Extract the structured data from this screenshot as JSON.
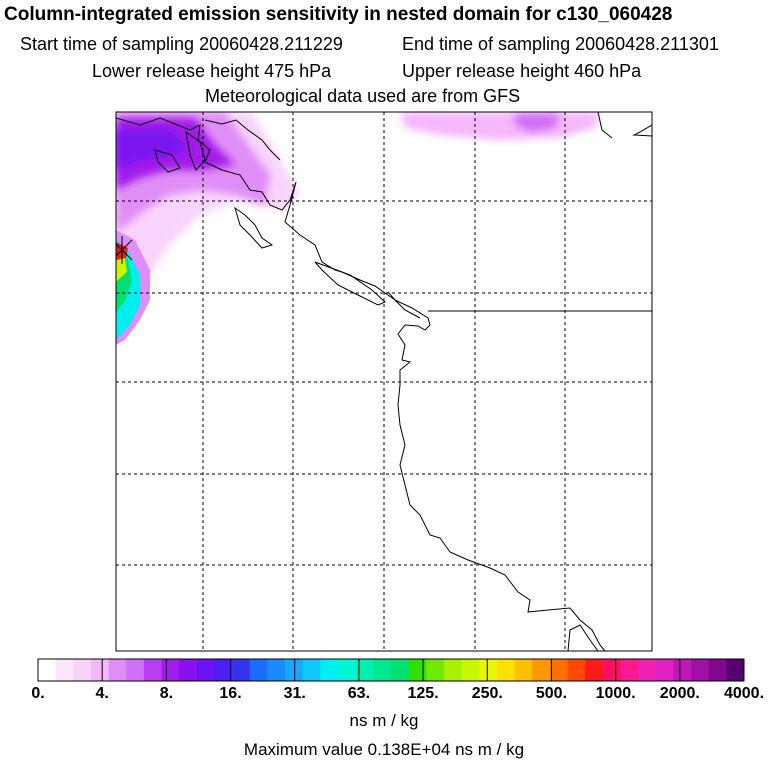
{
  "header": {
    "title": "Column-integrated emission sensitivity in nested domain for c130_060428",
    "start_time": "Start time of sampling 20060428.211229",
    "end_time": "End time of sampling 20060428.211301",
    "lower_release": "Lower release height  475 hPa",
    "upper_release": "Upper release height  460 hPa",
    "met_data": "Meteorological data used are from GFS"
  },
  "colorbar": {
    "ticks": [
      "0.",
      "4.",
      "8.",
      "16.",
      "31.",
      "63.",
      "125.",
      "250.",
      "500.",
      "1000.",
      "2000.",
      "4000."
    ],
    "colors": [
      "#ffffff",
      "#fce6fd",
      "#f9d2fc",
      "#f4b8fb",
      "#e08ef7",
      "#d070f6",
      "#b93ef0",
      "#a21be9",
      "#8a10f0",
      "#6c12f5",
      "#4a20f5",
      "#3434f0",
      "#1a6dff",
      "#1a8aff",
      "#18a8ff",
      "#10c8ff",
      "#00f0f0",
      "#00f5d5",
      "#00f0b0",
      "#00e890",
      "#00e070",
      "#30e000",
      "#70e800",
      "#a8f000",
      "#c8f500",
      "#e8f800",
      "#ffe000",
      "#ffc000",
      "#ff9800",
      "#ff7000",
      "#ff4800",
      "#ff1a1a",
      "#ff1060",
      "#ff1890",
      "#f020b0",
      "#e020c0",
      "#c018b8",
      "#a010a8",
      "#800890",
      "#580070"
    ],
    "units": "ns m / kg"
  },
  "max_value": "Maximum value  0.138E+04 ns m / kg",
  "map": {
    "background": "#ffffff",
    "grid_color": "#000000",
    "coast_color": "#000000"
  }
}
